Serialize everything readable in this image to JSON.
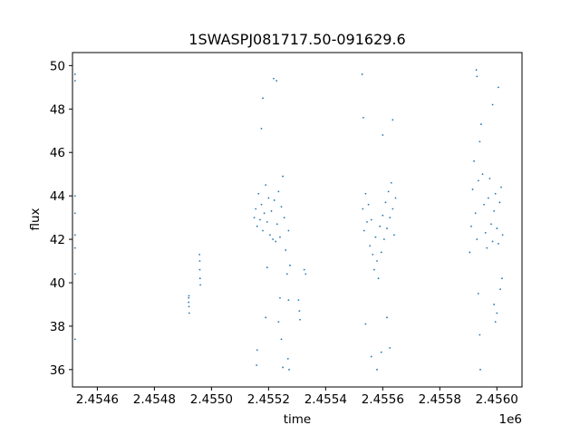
{
  "chart_data": {
    "type": "scatter",
    "title": "1SWASPJ081717.50-091629.6",
    "xlabel": "time",
    "ylabel": "flux",
    "x_offset_label": "1e6",
    "xlim": [
      2454513,
      2456088
    ],
    "ylim": [
      35.2,
      50.6
    ],
    "x_ticks": [
      2.4546,
      2.4548,
      2.455,
      2.4552,
      2.4554,
      2.4556,
      2.4558,
      2.456
    ],
    "x_tick_labels": [
      "2.4546",
      "2.4548",
      "2.4550",
      "2.4552",
      "2.4554",
      "2.4556",
      "2.4558",
      "2.4560"
    ],
    "y_ticks": [
      36,
      38,
      40,
      42,
      44,
      46,
      48,
      50
    ],
    "y_tick_labels": [
      "36",
      "38",
      "40",
      "42",
      "44",
      "46",
      "48",
      "50"
    ],
    "grid": false,
    "marker_color": "#1f77b4",
    "series_points": [
      [
        2454522,
        49.6
      ],
      [
        2454522,
        49.3
      ],
      [
        2454522,
        44.0
      ],
      [
        2454522,
        43.2
      ],
      [
        2454522,
        42.2
      ],
      [
        2454522,
        41.6
      ],
      [
        2454522,
        40.4
      ],
      [
        2454522,
        37.4
      ],
      [
        2454920,
        39.3
      ],
      [
        2454920,
        39.1
      ],
      [
        2454921,
        38.9
      ],
      [
        2454922,
        38.6
      ],
      [
        2454921,
        39.4
      ],
      [
        2454958,
        41.3
      ],
      [
        2454959,
        41.0
      ],
      [
        2454960,
        40.2
      ],
      [
        2454961,
        39.9
      ],
      [
        2454959,
        40.6
      ],
      [
        2455150,
        43.0
      ],
      [
        2455155,
        43.4
      ],
      [
        2455160,
        42.6
      ],
      [
        2455165,
        44.1
      ],
      [
        2455170,
        42.9
      ],
      [
        2455175,
        43.6
      ],
      [
        2455180,
        42.4
      ],
      [
        2455185,
        43.2
      ],
      [
        2455190,
        44.5
      ],
      [
        2455195,
        42.8
      ],
      [
        2455200,
        43.9
      ],
      [
        2455205,
        42.2
      ],
      [
        2455158,
        36.2
      ],
      [
        2455160,
        36.9
      ],
      [
        2455175,
        47.1
      ],
      [
        2455180,
        48.5
      ],
      [
        2455190,
        38.4
      ],
      [
        2455195,
        40.7
      ],
      [
        2455210,
        43.3
      ],
      [
        2455215,
        42.0
      ],
      [
        2455220,
        43.8
      ],
      [
        2455225,
        41.9
      ],
      [
        2455230,
        42.7
      ],
      [
        2455235,
        44.2
      ],
      [
        2455240,
        42.1
      ],
      [
        2455245,
        43.5
      ],
      [
        2455250,
        44.9
      ],
      [
        2455255,
        43.0
      ],
      [
        2455218,
        49.4
      ],
      [
        2455228,
        49.3
      ],
      [
        2455240,
        39.3
      ],
      [
        2455245,
        37.4
      ],
      [
        2455250,
        36.1
      ],
      [
        2455235,
        38.2
      ],
      [
        2455260,
        41.5
      ],
      [
        2455265,
        40.4
      ],
      [
        2455270,
        39.2
      ],
      [
        2455275,
        40.8
      ],
      [
        2455268,
        36.5
      ],
      [
        2455272,
        36.0
      ],
      [
        2455270,
        42.4
      ],
      [
        2455305,
        39.2
      ],
      [
        2455308,
        38.7
      ],
      [
        2455310,
        38.3
      ],
      [
        2455325,
        40.6
      ],
      [
        2455330,
        40.4
      ],
      [
        2455530,
        43.4
      ],
      [
        2455535,
        42.4
      ],
      [
        2455540,
        44.1
      ],
      [
        2455545,
        42.8
      ],
      [
        2455550,
        43.6
      ],
      [
        2455555,
        41.7
      ],
      [
        2455560,
        42.9
      ],
      [
        2455565,
        41.3
      ],
      [
        2455570,
        40.6
      ],
      [
        2455575,
        42.1
      ],
      [
        2455580,
        41.0
      ],
      [
        2455585,
        40.2
      ],
      [
        2455590,
        42.6
      ],
      [
        2455595,
        41.4
      ],
      [
        2455600,
        43.1
      ],
      [
        2455605,
        42.0
      ],
      [
        2455610,
        43.7
      ],
      [
        2455615,
        42.5
      ],
      [
        2455620,
        44.2
      ],
      [
        2455625,
        43.0
      ],
      [
        2455630,
        44.6
      ],
      [
        2455635,
        43.4
      ],
      [
        2455640,
        42.2
      ],
      [
        2455645,
        43.9
      ],
      [
        2455528,
        49.6
      ],
      [
        2455532,
        47.6
      ],
      [
        2455540,
        38.1
      ],
      [
        2455560,
        36.6
      ],
      [
        2455580,
        36.0
      ],
      [
        2455595,
        36.8
      ],
      [
        2455600,
        46.8
      ],
      [
        2455615,
        38.4
      ],
      [
        2455625,
        37.0
      ],
      [
        2455635,
        47.5
      ],
      [
        2455905,
        41.4
      ],
      [
        2455910,
        42.6
      ],
      [
        2455915,
        44.3
      ],
      [
        2455920,
        45.6
      ],
      [
        2455925,
        43.2
      ],
      [
        2455930,
        42.0
      ],
      [
        2455935,
        44.7
      ],
      [
        2455940,
        46.5
      ],
      [
        2455945,
        47.3
      ],
      [
        2455950,
        45.0
      ],
      [
        2455955,
        43.6
      ],
      [
        2455960,
        42.3
      ],
      [
        2455965,
        41.6
      ],
      [
        2455970,
        43.9
      ],
      [
        2455975,
        44.8
      ],
      [
        2455980,
        42.7
      ],
      [
        2455985,
        41.9
      ],
      [
        2455990,
        43.3
      ],
      [
        2455995,
        44.1
      ],
      [
        2456000,
        42.5
      ],
      [
        2456005,
        41.8
      ],
      [
        2456010,
        43.7
      ],
      [
        2456015,
        44.4
      ],
      [
        2456020,
        42.2
      ],
      [
        2455928,
        49.8
      ],
      [
        2455930,
        49.5
      ],
      [
        2455935,
        39.5
      ],
      [
        2455940,
        37.6
      ],
      [
        2455942,
        36.0
      ],
      [
        2455985,
        48.2
      ],
      [
        2455990,
        39.0
      ],
      [
        2455995,
        38.2
      ],
      [
        2456000,
        38.6
      ],
      [
        2456005,
        49.0
      ],
      [
        2456012,
        39.7
      ],
      [
        2456018,
        40.2
      ]
    ]
  }
}
